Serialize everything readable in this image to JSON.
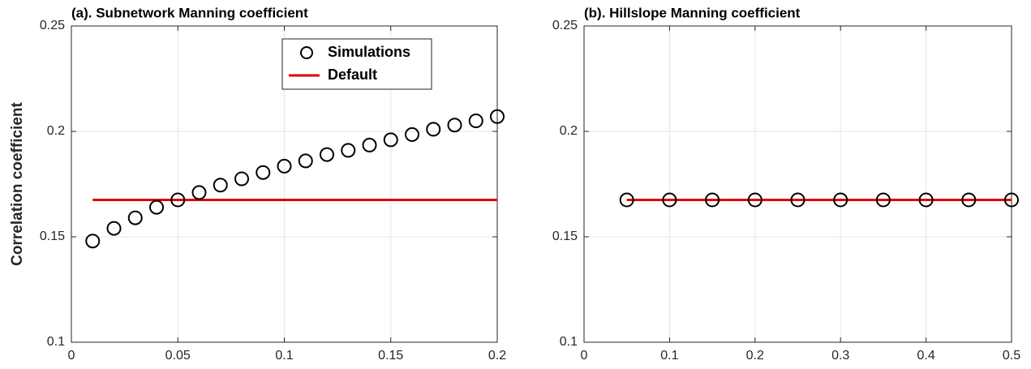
{
  "chart_data": [
    {
      "type": "scatter",
      "title": "(a). Subnetwork Manning coefficient",
      "y_label": "Correlation coefficient",
      "xlim": [
        0,
        0.2
      ],
      "xticks": [
        0,
        0.05,
        0.1,
        0.15,
        0.2
      ],
      "ylim": [
        0.1,
        0.25
      ],
      "yticks": [
        0.1,
        0.15,
        0.2,
        0.25
      ],
      "grid": true,
      "legend": "north",
      "series": [
        {
          "name": "Simulations",
          "style": "markers",
          "color": "#000000",
          "x": [
            0.01,
            0.02,
            0.03,
            0.04,
            0.05,
            0.06,
            0.07,
            0.08,
            0.09,
            0.1,
            0.11,
            0.12,
            0.13,
            0.14,
            0.15,
            0.16,
            0.17,
            0.18,
            0.19,
            0.2
          ],
          "values": [
            0.148,
            0.154,
            0.159,
            0.164,
            0.1675,
            0.171,
            0.1745,
            0.1775,
            0.1805,
            0.1835,
            0.186,
            0.189,
            0.191,
            0.1935,
            0.196,
            0.1985,
            0.201,
            0.203,
            0.205,
            0.207
          ]
        },
        {
          "name": "Default",
          "style": "line",
          "color": "#e00000",
          "x": [
            0.01,
            0.2
          ],
          "values": [
            0.1675,
            0.1675
          ]
        }
      ]
    },
    {
      "type": "scatter",
      "title": "(b). Hillslope Manning coefficient",
      "xlim": [
        0,
        0.5
      ],
      "xticks": [
        0,
        0.1,
        0.2,
        0.3,
        0.4,
        0.5
      ],
      "ylim": [
        0.1,
        0.25
      ],
      "yticks": [
        0.1,
        0.15,
        0.2,
        0.25
      ],
      "grid": true,
      "series": [
        {
          "name": "Simulations",
          "style": "markers",
          "color": "#000000",
          "x": [
            0.05,
            0.1,
            0.15,
            0.2,
            0.25,
            0.3,
            0.35,
            0.4,
            0.45,
            0.5
          ],
          "values": [
            0.1675,
            0.1675,
            0.1675,
            0.1675,
            0.1675,
            0.1675,
            0.1675,
            0.1675,
            0.1675,
            0.1675
          ]
        },
        {
          "name": "Default",
          "style": "line",
          "color": "#e00000",
          "x": [
            0.05,
            0.5
          ],
          "values": [
            0.1675,
            0.1675
          ]
        }
      ]
    }
  ]
}
